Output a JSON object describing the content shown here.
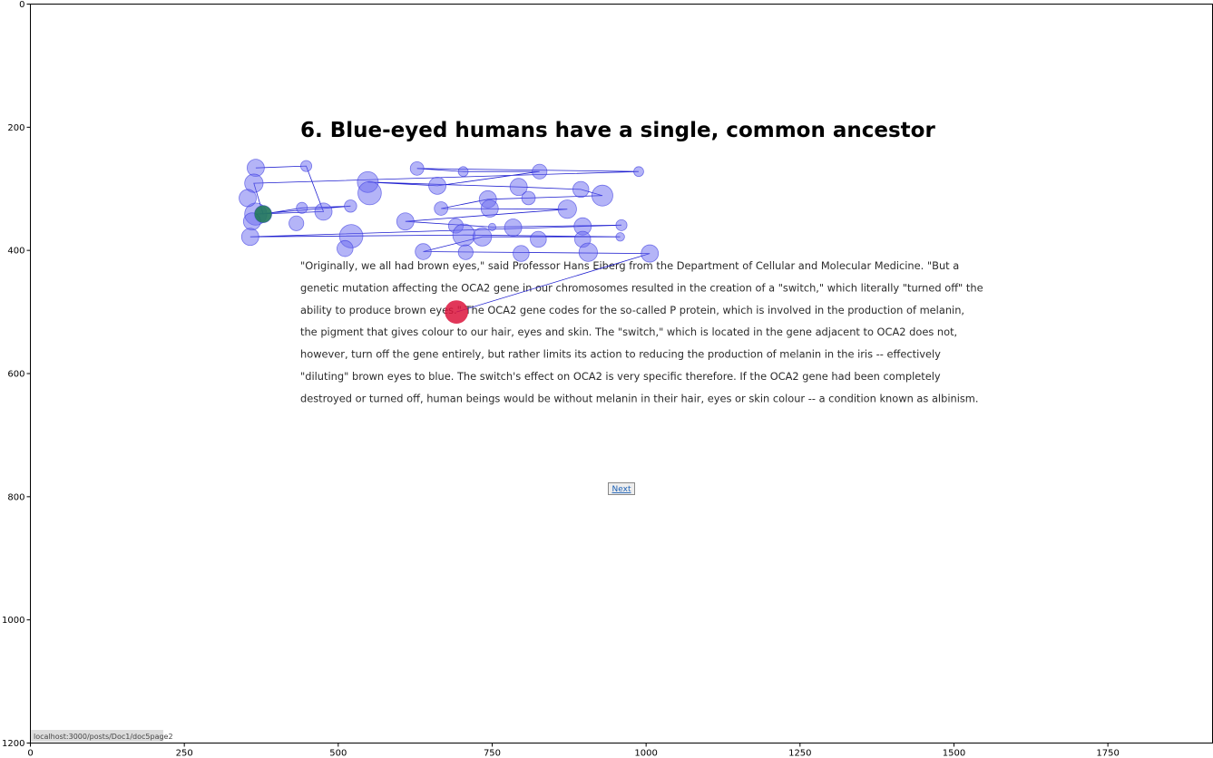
{
  "page": {
    "title": "6. Blue-eyed humans have a single, common ancestor",
    "paragraph_lines": [
      "\"Originally, we all had brown eyes,\" said Professor Hans Eiberg from the Department of Cellular and Molecular Medicine. \"But a",
      "genetic mutation affecting the OCA2 gene in our chromosomes resulted in the creation of a \"switch,\" which literally \"turned off\" the",
      "ability to produce brown eyes.\" The OCA2 gene codes for the so-called P protein, which is involved in the production of melanin,",
      "the pigment that gives colour to our hair, eyes and skin. The \"switch,\" which is located in the gene adjacent to OCA2 does not,",
      "however, turn off the gene entirely, but rather limits its action to reducing the production of melanin in the iris -- effectively",
      "\"diluting\" brown eyes to blue. The switch's effect on OCA2 is very specific therefore. If the OCA2 gene had been completely",
      "destroyed or turned off, human beings would be without melanin in their hair, eyes or skin colour -- a condition known as albinism."
    ],
    "next_button": "Next",
    "status_url": "localhost:3000/posts/Doc1/doc5page2"
  },
  "chart_data": {
    "type": "scatter",
    "xlim": [
      0,
      1920
    ],
    "ylim": [
      1200,
      0
    ],
    "x_ticks": [
      0,
      250,
      500,
      750,
      1000,
      1250,
      1500,
      1750
    ],
    "y_ticks": [
      0,
      200,
      400,
      600,
      800,
      1000,
      1200
    ],
    "grid": false,
    "series": [
      {
        "color": "#6a6af0",
        "line_color": "#2020d0",
        "points": [
          {
            "x": 366,
            "y": 266,
            "r": 14
          },
          {
            "x": 448,
            "y": 263,
            "r": 9
          },
          {
            "x": 476,
            "y": 337,
            "r": 14
          },
          {
            "x": 366,
            "y": 341,
            "r": 18
          },
          {
            "x": 378,
            "y": 341,
            "r": 14
          },
          {
            "x": 441,
            "y": 331,
            "r": 9
          },
          {
            "x": 520,
            "y": 328,
            "r": 10
          },
          {
            "x": 548,
            "y": 289,
            "r": 17
          },
          {
            "x": 551,
            "y": 307,
            "r": 19
          },
          {
            "x": 628,
            "y": 267,
            "r": 11
          },
          {
            "x": 703,
            "y": 272,
            "r": 8
          },
          {
            "x": 827,
            "y": 272,
            "r": 12
          },
          {
            "x": 988,
            "y": 272,
            "r": 8
          },
          {
            "x": 363,
            "y": 291,
            "r": 15
          },
          {
            "x": 353,
            "y": 315,
            "r": 14
          },
          {
            "x": 661,
            "y": 295,
            "r": 14
          },
          {
            "x": 793,
            "y": 297,
            "r": 14
          },
          {
            "x": 894,
            "y": 301,
            "r": 13
          },
          {
            "x": 929,
            "y": 311,
            "r": 17
          },
          {
            "x": 743,
            "y": 317,
            "r": 14
          },
          {
            "x": 809,
            "y": 315,
            "r": 11
          },
          {
            "x": 746,
            "y": 332,
            "r": 14
          },
          {
            "x": 667,
            "y": 332,
            "r": 11
          },
          {
            "x": 872,
            "y": 333,
            "r": 15
          },
          {
            "x": 432,
            "y": 356,
            "r": 12
          },
          {
            "x": 360,
            "y": 353,
            "r": 14
          },
          {
            "x": 609,
            "y": 353,
            "r": 14
          },
          {
            "x": 691,
            "y": 360,
            "r": 12
          },
          {
            "x": 750,
            "y": 362,
            "r": 6
          },
          {
            "x": 784,
            "y": 363,
            "r": 14
          },
          {
            "x": 897,
            "y": 361,
            "r": 14
          },
          {
            "x": 960,
            "y": 359,
            "r": 9
          },
          {
            "x": 357,
            "y": 378,
            "r": 14
          },
          {
            "x": 521,
            "y": 377,
            "r": 19
          },
          {
            "x": 704,
            "y": 375,
            "r": 18
          },
          {
            "x": 734,
            "y": 378,
            "r": 15
          },
          {
            "x": 825,
            "y": 382,
            "r": 13
          },
          {
            "x": 897,
            "y": 382,
            "r": 13
          },
          {
            "x": 958,
            "y": 378,
            "r": 7
          },
          {
            "x": 511,
            "y": 397,
            "r": 13
          },
          {
            "x": 638,
            "y": 402,
            "r": 13
          },
          {
            "x": 707,
            "y": 403,
            "r": 12
          },
          {
            "x": 797,
            "y": 405,
            "r": 13
          },
          {
            "x": 906,
            "y": 403,
            "r": 15
          },
          {
            "x": 1006,
            "y": 405,
            "r": 14
          }
        ],
        "path": [
          {
            "x": 366,
            "y": 266
          },
          {
            "x": 448,
            "y": 263
          },
          {
            "x": 476,
            "y": 337
          },
          {
            "x": 366,
            "y": 341
          },
          {
            "x": 520,
            "y": 328
          },
          {
            "x": 441,
            "y": 331
          },
          {
            "x": 378,
            "y": 341
          },
          {
            "x": 363,
            "y": 291
          },
          {
            "x": 988,
            "y": 272
          },
          {
            "x": 628,
            "y": 267
          },
          {
            "x": 703,
            "y": 272
          },
          {
            "x": 827,
            "y": 272
          },
          {
            "x": 661,
            "y": 295
          },
          {
            "x": 548,
            "y": 289
          },
          {
            "x": 793,
            "y": 297
          },
          {
            "x": 894,
            "y": 301
          },
          {
            "x": 929,
            "y": 311
          },
          {
            "x": 743,
            "y": 317
          },
          {
            "x": 667,
            "y": 332
          },
          {
            "x": 872,
            "y": 333
          },
          {
            "x": 609,
            "y": 353
          },
          {
            "x": 750,
            "y": 362
          },
          {
            "x": 960,
            "y": 359
          },
          {
            "x": 357,
            "y": 378
          },
          {
            "x": 704,
            "y": 375
          },
          {
            "x": 958,
            "y": 378
          },
          {
            "x": 734,
            "y": 378
          },
          {
            "x": 638,
            "y": 402
          },
          {
            "x": 1006,
            "y": 405
          },
          {
            "x": 692,
            "y": 500
          }
        ]
      },
      {
        "color": "#1f7a52",
        "points": [
          {
            "x": 378,
            "y": 341,
            "r": 14
          }
        ]
      },
      {
        "color": "#dc143c",
        "points": [
          {
            "x": 692,
            "y": 500,
            "r": 19
          }
        ]
      }
    ]
  }
}
